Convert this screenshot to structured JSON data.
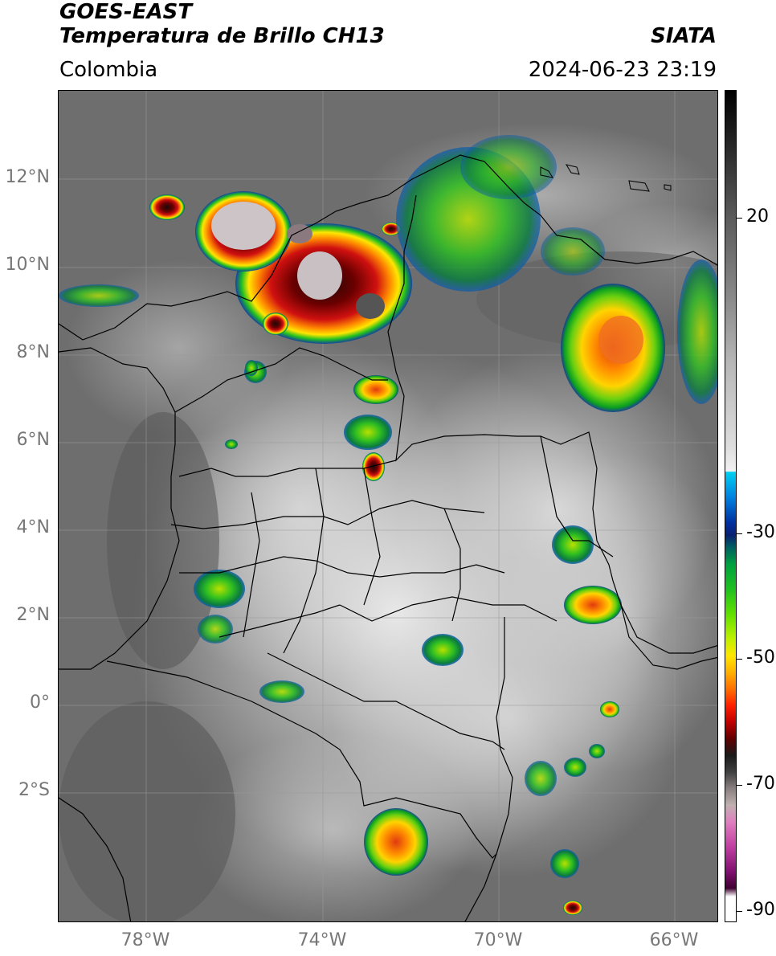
{
  "header": {
    "satellite": "GOES-EAST",
    "product": "Temperatura de Brillo CH13",
    "region": "Colombia",
    "agency": "SIATA",
    "datetime": "2024-06-23 23:19"
  },
  "map": {
    "lat_labels": [
      "12°N",
      "10°N",
      "8°N",
      "6°N",
      "4°N",
      "2°N",
      "0°",
      "2°S"
    ],
    "lon_labels": [
      "78°W",
      "74°W",
      "70°W",
      "66°W"
    ]
  },
  "colorbar": {
    "labels": [
      "20",
      "-30",
      "-50",
      "-70",
      "-90"
    ]
  }
}
